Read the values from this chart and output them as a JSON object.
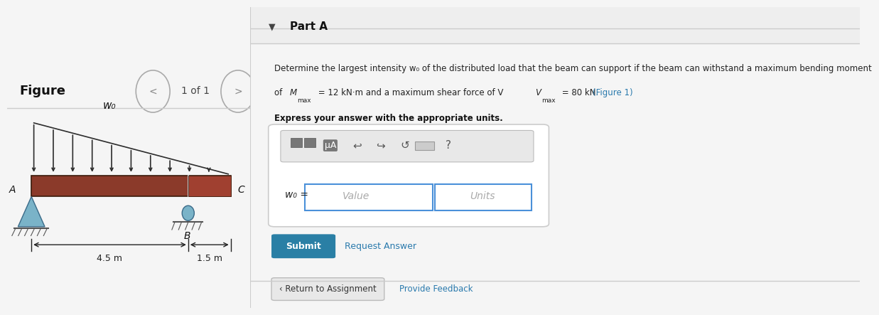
{
  "bg_color": "#f5f5f5",
  "left_panel_bg": "#ffffff",
  "right_panel_bg": "#ffffff",
  "fig_label": "Figure",
  "nav_text": "1 of 1",
  "beam_color": "#8B3A2A",
  "beam_dark": "#5C1A0A",
  "arrow_color": "#2c2c2c",
  "support_color": "#7ab3c8",
  "support_dark": "#5a8fa8",
  "dim_color": "#222222",
  "load_label": "w₀",
  "dim_left": "4.5 m",
  "dim_right": "1.5 m",
  "label_A": "A",
  "label_B": "B",
  "label_C": "C",
  "part_label": "Part A",
  "problem_text_line1": "Determine the largest intensity w₀ of the distributed load that the beam can support if the beam can withstand a maximum bending moment",
  "problem_text_line2c": " = 12 kN·m and a maximum shear force of V",
  "problem_text_line2e": " = 80 kN.",
  "figure_link": "(Figure 1)",
  "bold_text": "Express your answer with the appropriate units.",
  "w0_label": "w₀ =",
  "value_placeholder": "Value",
  "units_placeholder": "Units",
  "submit_btn": "Submit",
  "request_answer": "Request Answer",
  "return_btn": "‹ Return to Assignment",
  "feedback_link": "Provide Feedback",
  "submit_color": "#2a7fa5",
  "link_color": "#2a7aad",
  "divider_color": "#cccccc",
  "panel_divider_color": "#cccccc",
  "toolbar_bg": "#e8e8e8",
  "input_border": "#4a90d9"
}
